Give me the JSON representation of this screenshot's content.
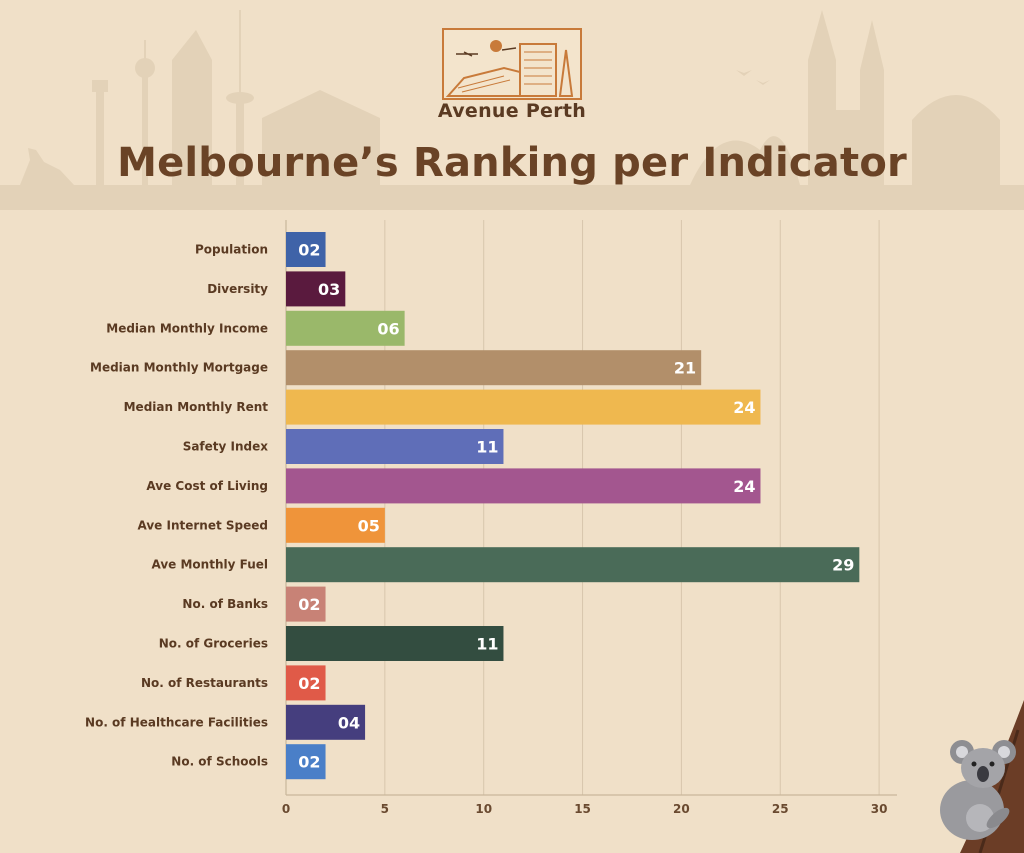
{
  "brand": {
    "name": "Avenue Perth"
  },
  "page": {
    "title": "Melbourne’s Ranking per Indicator"
  },
  "chart_data": {
    "type": "bar",
    "orientation": "horizontal",
    "title": "Melbourne’s Ranking per Indicator",
    "xlabel": "",
    "ylabel": "",
    "xlim": [
      0,
      30
    ],
    "xticks": [
      0,
      5,
      10,
      15,
      20,
      25,
      30
    ],
    "grid": true,
    "categories": [
      "Population",
      "Diversity",
      "Median Monthly Income",
      "Median Monthly Mortgage",
      "Median Monthly Rent",
      "Safety Index",
      "Ave Cost of Living",
      "Ave Internet Speed",
      "Ave Monthly Fuel",
      "No. of Banks",
      "No. of Groceries",
      "No. of Restaurants",
      "No. of Healthcare Facilities",
      "No. of Schools"
    ],
    "values": [
      2,
      3,
      6,
      21,
      24,
      11,
      24,
      5,
      29,
      2,
      11,
      2,
      4,
      2
    ],
    "labels": [
      "02",
      "03",
      "06",
      "21",
      "24",
      "11",
      "24",
      "05",
      "29",
      "02",
      "11",
      "02",
      "04",
      "02"
    ],
    "colors": [
      "#3f63a8",
      "#5a1a3e",
      "#9ab86a",
      "#b28f6a",
      "#efb84f",
      "#5f6eb8",
      "#a3568f",
      "#ef943a",
      "#4a6b58",
      "#c88276",
      "#334d40",
      "#e05a48",
      "#453e7e",
      "#4a7fc8"
    ]
  }
}
